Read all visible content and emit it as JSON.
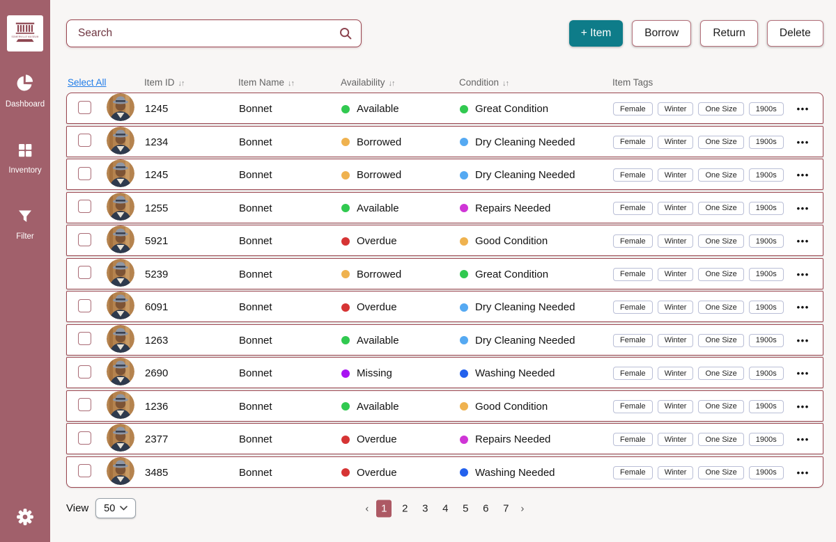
{
  "sidebar": {
    "logo_text": "SOMERVILLE MUSEUM",
    "items": [
      {
        "label": "Dashboard",
        "icon": "pie-chart-icon"
      },
      {
        "label": "Inventory",
        "icon": "grid-icon"
      },
      {
        "label": "Filter",
        "icon": "funnel-icon"
      }
    ]
  },
  "toolbar": {
    "search_placeholder": "Search",
    "buttons": {
      "add": "+ Item",
      "borrow": "Borrow",
      "return": "Return",
      "delete": "Delete"
    }
  },
  "table": {
    "select_all": "Select All",
    "sort_icon": "↓↑",
    "menu_icon": "•••",
    "headers": [
      {
        "label": "Item ID",
        "sortable": true
      },
      {
        "label": "Item Name",
        "sortable": true
      },
      {
        "label": "Availability",
        "sortable": true
      },
      {
        "label": "Condition",
        "sortable": true
      },
      {
        "label": "Item Tags",
        "sortable": false
      }
    ],
    "rows": [
      {
        "id": "1245",
        "name": "Bonnet",
        "availability": "Available",
        "condition": "Great Condition",
        "tags": [
          "Female",
          "Winter",
          "One Size",
          "1900s"
        ]
      },
      {
        "id": "1234",
        "name": "Bonnet",
        "availability": "Borrowed",
        "condition": "Dry Cleaning Needed",
        "tags": [
          "Female",
          "Winter",
          "One Size",
          "1900s"
        ]
      },
      {
        "id": "1245",
        "name": "Bonnet",
        "availability": "Borrowed",
        "condition": "Dry Cleaning Needed",
        "tags": [
          "Female",
          "Winter",
          "One Size",
          "1900s"
        ]
      },
      {
        "id": "1255",
        "name": "Bonnet",
        "availability": "Available",
        "condition": "Repairs Needed",
        "tags": [
          "Female",
          "Winter",
          "One Size",
          "1900s"
        ]
      },
      {
        "id": "5921",
        "name": "Bonnet",
        "availability": "Overdue",
        "condition": "Good Condition",
        "tags": [
          "Female",
          "Winter",
          "One Size",
          "1900s"
        ]
      },
      {
        "id": "5239",
        "name": "Bonnet",
        "availability": "Borrowed",
        "condition": "Great Condition",
        "tags": [
          "Female",
          "Winter",
          "One Size",
          "1900s"
        ]
      },
      {
        "id": "6091",
        "name": "Bonnet",
        "availability": "Overdue",
        "condition": "Dry Cleaning Needed",
        "tags": [
          "Female",
          "Winter",
          "One Size",
          "1900s"
        ]
      },
      {
        "id": "1263",
        "name": "Bonnet",
        "availability": "Available",
        "condition": "Dry Cleaning Needed",
        "tags": [
          "Female",
          "Winter",
          "One Size",
          "1900s"
        ]
      },
      {
        "id": "2690",
        "name": "Bonnet",
        "availability": "Missing",
        "condition": "Washing Needed",
        "tags": [
          "Female",
          "Winter",
          "One Size",
          "1900s"
        ]
      },
      {
        "id": "1236",
        "name": "Bonnet",
        "availability": "Available",
        "condition": "Good Condition",
        "tags": [
          "Female",
          "Winter",
          "One Size",
          "1900s"
        ]
      },
      {
        "id": "2377",
        "name": "Bonnet",
        "availability": "Overdue",
        "condition": "Repairs Needed",
        "tags": [
          "Female",
          "Winter",
          "One Size",
          "1900s"
        ]
      },
      {
        "id": "3485",
        "name": "Bonnet",
        "availability": "Overdue",
        "condition": "Washing Needed",
        "tags": [
          "Female",
          "Winter",
          "One Size",
          "1900s"
        ]
      }
    ]
  },
  "status_colors": {
    "Available": "#31c950",
    "Borrowed": "#efb24f",
    "Overdue": "#d63434",
    "Missing": "#a813f2",
    "Great Condition": "#31c950",
    "Good Condition": "#efb24f",
    "Dry Cleaning Needed": "#55a9f2",
    "Washing Needed": "#2361ed",
    "Repairs Needed": "#cf35d6"
  },
  "pagination": {
    "prev": "‹",
    "next": "›",
    "pages": [
      "1",
      "2",
      "3",
      "4",
      "5",
      "6",
      "7"
    ],
    "active": "1"
  },
  "view": {
    "label": "View",
    "value": "50"
  },
  "theme": {
    "sidebar": "#a1606b",
    "border": "#9a454f",
    "teal": "#0e7c89",
    "link": "#1f7ce8",
    "active_page": "#ad5964"
  }
}
